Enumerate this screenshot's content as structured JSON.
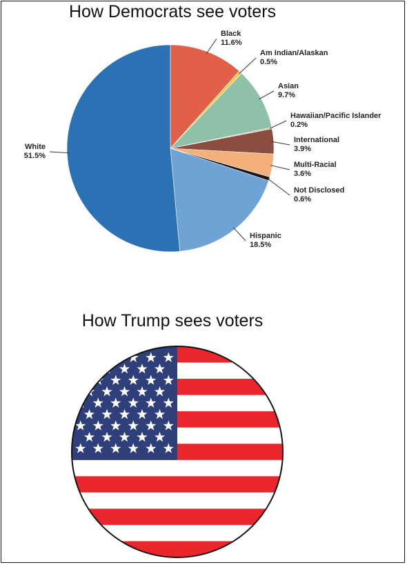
{
  "titles": {
    "top": "How Democrats see voters",
    "bottom": "How Trump sees voters"
  },
  "chart_data": [
    {
      "type": "pie",
      "title": "How Democrats see voters",
      "slices": [
        {
          "name": "Black",
          "label": "11.6%",
          "value": 11.6,
          "color": "#e0604a"
        },
        {
          "name": "Am Indian/Alaskan",
          "label": "0.5%",
          "value": 0.5,
          "color": "#f6c84a"
        },
        {
          "name": "Asian",
          "label": "9.7%",
          "value": 9.7,
          "color": "#8fc1a8"
        },
        {
          "name": "Hawaiian/Pacific Islander",
          "label": "0.2%",
          "value": 0.2,
          "color": "#c9b8a0"
        },
        {
          "name": "International",
          "label": "3.9%",
          "value": 3.9,
          "color": "#8a4d3f"
        },
        {
          "name": "Multi-Racial",
          "label": "3.6%",
          "value": 3.6,
          "color": "#f4b07a"
        },
        {
          "name": "Not Disclosed",
          "label": "0.6%",
          "value": 0.6,
          "color": "#1a1a1a"
        },
        {
          "name": "Hispanic",
          "label": "18.5%",
          "value": 18.5,
          "color": "#6fa3d6"
        },
        {
          "name": "White",
          "label": "51.5%",
          "value": 51.5,
          "color": "#2b72b4"
        }
      ]
    }
  ],
  "flag": {
    "title": "How Trump sees voters",
    "stripe_red": "#e8262b",
    "stripe_white": "#ffffff",
    "canton_blue": "#2f3f7a",
    "star_color": "#ffffff"
  }
}
